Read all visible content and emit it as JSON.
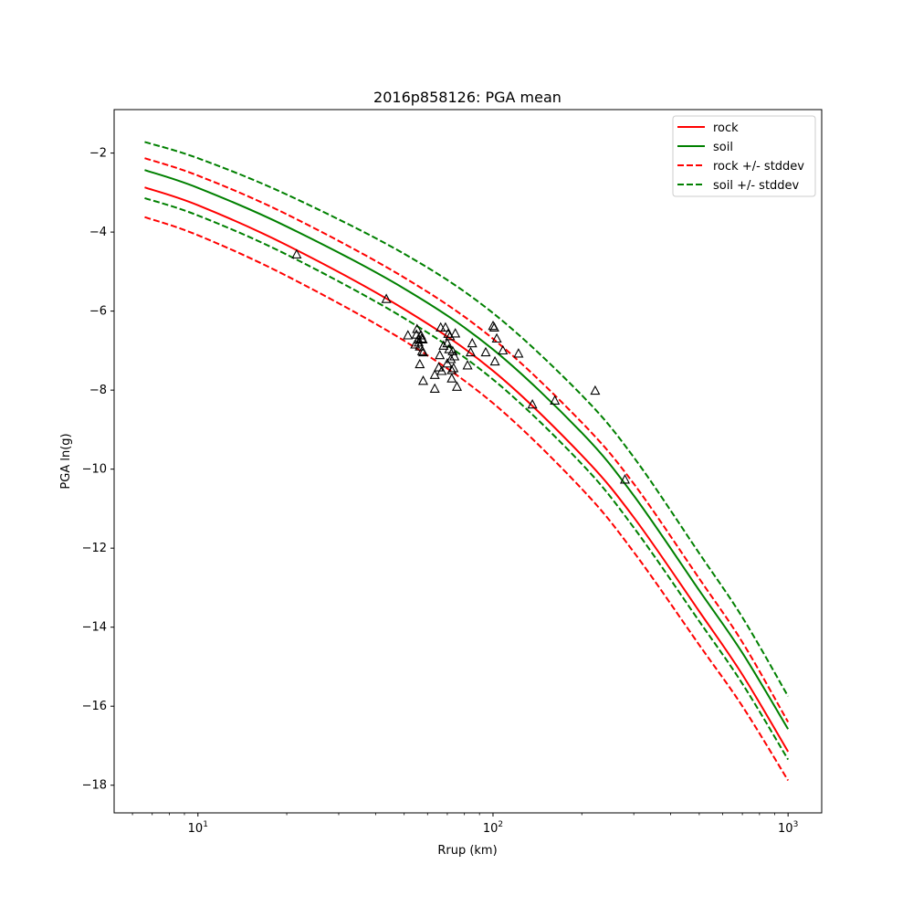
{
  "chart_data": {
    "type": "line",
    "title": "2016p858126: PGA mean",
    "xlabel": "Rrup (km)",
    "ylabel": "PGA ln(g)",
    "xscale": "log",
    "xlim": [
      5.2,
      1300
    ],
    "ylim": [
      -18.7,
      -0.9
    ],
    "x_ticks": [
      {
        "value": 10,
        "base": "10",
        "exp": "1"
      },
      {
        "value": 100,
        "base": "10",
        "exp": "2"
      },
      {
        "value": 1000,
        "base": "10",
        "exp": "3"
      }
    ],
    "y_ticks": [
      {
        "value": -2,
        "label": "−2"
      },
      {
        "value": -4,
        "label": "−4"
      },
      {
        "value": -6,
        "label": "−6"
      },
      {
        "value": -8,
        "label": "−8"
      },
      {
        "value": -10,
        "label": "−10"
      },
      {
        "value": -12,
        "label": "−12"
      },
      {
        "value": -14,
        "label": "−14"
      },
      {
        "value": -16,
        "label": "−16"
      },
      {
        "value": -18,
        "label": "−18"
      }
    ],
    "grid": false,
    "legend_position": "top-right",
    "legend": [
      {
        "label": "rock",
        "color": "#ff0000",
        "dash": "solid"
      },
      {
        "label": "soil",
        "color": "#008000",
        "dash": "solid"
      },
      {
        "label": "rock +/- stddev",
        "color": "#ff0000",
        "dash": "dashed"
      },
      {
        "label": "soil +/- stddev",
        "color": "#008000",
        "dash": "dashed"
      }
    ],
    "x": [
      6.6,
      10,
      20,
      50,
      100,
      200,
      300,
      500,
      700,
      1000
    ],
    "series": [
      {
        "name": "rock",
        "color": "#ff0000",
        "dash": "solid",
        "y": [
          -2.87,
          -3.32,
          -4.33,
          -5.95,
          -7.51,
          -9.65,
          -11.22,
          -13.6,
          -15.2,
          -17.15
        ]
      },
      {
        "name": "soil",
        "color": "#008000",
        "dash": "solid",
        "y": [
          -2.43,
          -2.88,
          -3.86,
          -5.43,
          -6.97,
          -9.08,
          -10.67,
          -13.07,
          -14.65,
          -16.58
        ]
      },
      {
        "name": "rock +/- stddev",
        "color": "#ff0000",
        "dash": "dashed",
        "y": [
          -2.13,
          -2.57,
          -3.55,
          -5.15,
          -6.7,
          -8.82,
          -10.37,
          -12.77,
          -14.38,
          -16.4
        ]
      },
      {
        "name": "rock +/- stddev",
        "color": "#ff0000",
        "dash": "dashed",
        "y": [
          -3.62,
          -4.08,
          -5.11,
          -6.75,
          -8.33,
          -10.5,
          -12.1,
          -14.45,
          -16.0,
          -17.88
        ]
      },
      {
        "name": "soil +/- stddev",
        "color": "#008000",
        "dash": "dashed",
        "y": [
          -1.72,
          -2.13,
          -3.05,
          -4.55,
          -6.05,
          -8.13,
          -9.7,
          -12.13,
          -13.75,
          -15.75
        ]
      },
      {
        "name": "soil +/- stddev",
        "color": "#008000",
        "dash": "dashed",
        "y": [
          -3.14,
          -3.58,
          -4.57,
          -6.18,
          -7.73,
          -9.87,
          -11.48,
          -13.85,
          -15.43,
          -17.35
        ]
      }
    ],
    "observations": {
      "marker": "triangle",
      "points": [
        [
          21.6,
          -4.57
        ],
        [
          43.5,
          -5.7
        ],
        [
          51.5,
          -6.62
        ],
        [
          54.5,
          -6.85
        ],
        [
          55.0,
          -6.6
        ],
        [
          55.3,
          -6.46
        ],
        [
          55.8,
          -6.72
        ],
        [
          56.0,
          -6.8
        ],
        [
          56.5,
          -6.9
        ],
        [
          56.5,
          -7.35
        ],
        [
          57.0,
          -6.62
        ],
        [
          57.3,
          -6.7
        ],
        [
          57.5,
          -7.02
        ],
        [
          57.8,
          -6.72
        ],
        [
          58.0,
          -7.05
        ],
        [
          58.0,
          -7.77
        ],
        [
          63.5,
          -7.62
        ],
        [
          63.5,
          -7.97
        ],
        [
          65.5,
          -7.43
        ],
        [
          66.0,
          -7.12
        ],
        [
          66.5,
          -6.42
        ],
        [
          67.0,
          -7.52
        ],
        [
          68.0,
          -6.88
        ],
        [
          69.0,
          -6.42
        ],
        [
          70.0,
          -6.82
        ],
        [
          70.0,
          -7.33
        ],
        [
          70.5,
          -6.58
        ],
        [
          71.0,
          -6.97
        ],
        [
          71.5,
          -6.64
        ],
        [
          72.0,
          -7.22
        ],
        [
          72.5,
          -7.5
        ],
        [
          72.5,
          -7.71
        ],
        [
          73.0,
          -7.02
        ],
        [
          73.5,
          -7.45
        ],
        [
          74.0,
          -7.15
        ],
        [
          74.5,
          -6.57
        ],
        [
          75.5,
          -7.92
        ],
        [
          82.0,
          -7.38
        ],
        [
          84.0,
          -7.05
        ],
        [
          85.0,
          -6.82
        ],
        [
          94.5,
          -7.05
        ],
        [
          100.0,
          -6.38
        ],
        [
          101.0,
          -6.42
        ],
        [
          101.5,
          -7.28
        ],
        [
          103.0,
          -6.7
        ],
        [
          108.0,
          -7.0
        ],
        [
          122.0,
          -7.08
        ],
        [
          136.0,
          -8.37
        ],
        [
          162.0,
          -8.27
        ],
        [
          222.0,
          -8.02
        ],
        [
          280.0,
          -10.27
        ]
      ]
    }
  }
}
